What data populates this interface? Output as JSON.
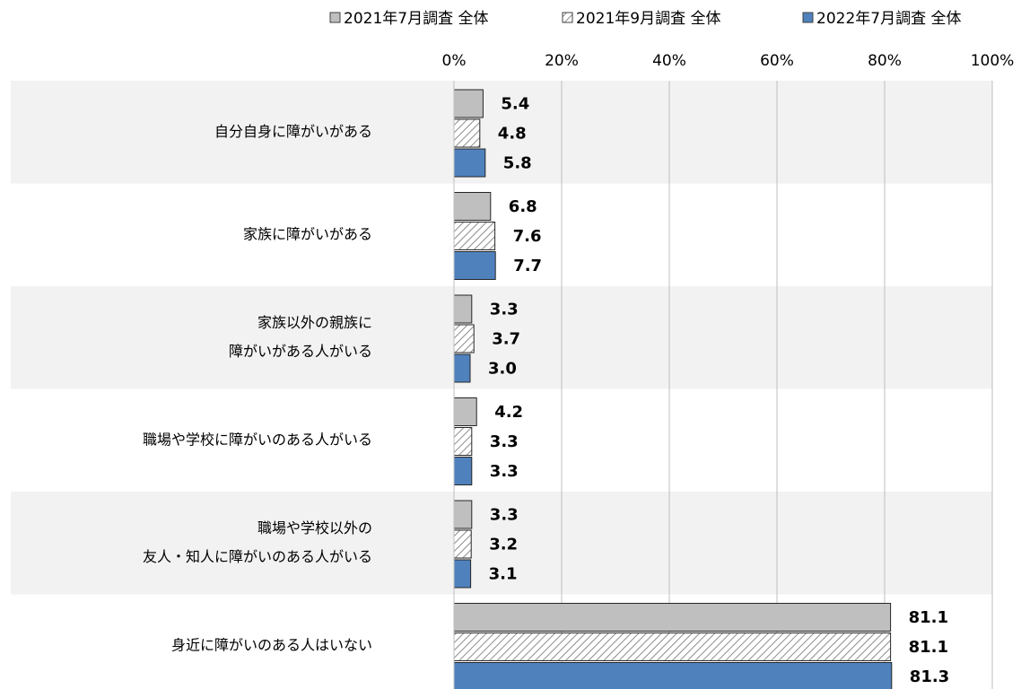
{
  "chart_data": {
    "type": "bar",
    "orientation": "horizontal",
    "categories": [
      [
        "自分自身に障がいがある"
      ],
      [
        "家族に障がいがある"
      ],
      [
        "家族以外の親族に",
        "障がいがある人がいる"
      ],
      [
        "職場や学校に障がいのある人がいる"
      ],
      [
        "職場や学校以外の",
        "友人・知人に障がいのある人がいる"
      ],
      [
        "身近に障がいのある人はいない"
      ]
    ],
    "series": [
      {
        "name": "2021年7月調査 全体",
        "color": "#bfbfbf",
        "label_color": "#a6a6a6",
        "values": [
          5.4,
          6.8,
          3.3,
          4.2,
          3.3,
          81.1
        ],
        "value_labels": [
          "5.4",
          "6.8",
          "3.3",
          "4.2",
          "3.3",
          "81.1"
        ]
      },
      {
        "name": "2021年9月調査 全体",
        "color": "#ffffff",
        "hatch": true,
        "label_color": "#a6a6a6",
        "values": [
          4.8,
          7.6,
          3.7,
          3.3,
          3.2,
          81.1
        ],
        "value_labels": [
          "4.8",
          "7.6",
          "3.7",
          "3.3",
          "3.2",
          "81.1"
        ]
      },
      {
        "name": "2022年7月調査 全体",
        "color": "#4f81bd",
        "label_color": "#000000",
        "values": [
          5.8,
          7.7,
          3.0,
          3.3,
          3.1,
          81.3
        ],
        "value_labels": [
          "5.8",
          "7.7",
          "3.0",
          "3.3",
          "3.1",
          "81.3"
        ]
      }
    ],
    "xlim": [
      0,
      100
    ],
    "xticks": [
      {
        "value": 0,
        "label": "0%"
      },
      {
        "value": 20,
        "label": "20%"
      },
      {
        "value": 40,
        "label": "40%"
      },
      {
        "value": 60,
        "label": "60%"
      },
      {
        "value": 80,
        "label": "80%"
      },
      {
        "value": 100,
        "label": "100%"
      }
    ],
    "grid": true,
    "legend_position": "top"
  }
}
